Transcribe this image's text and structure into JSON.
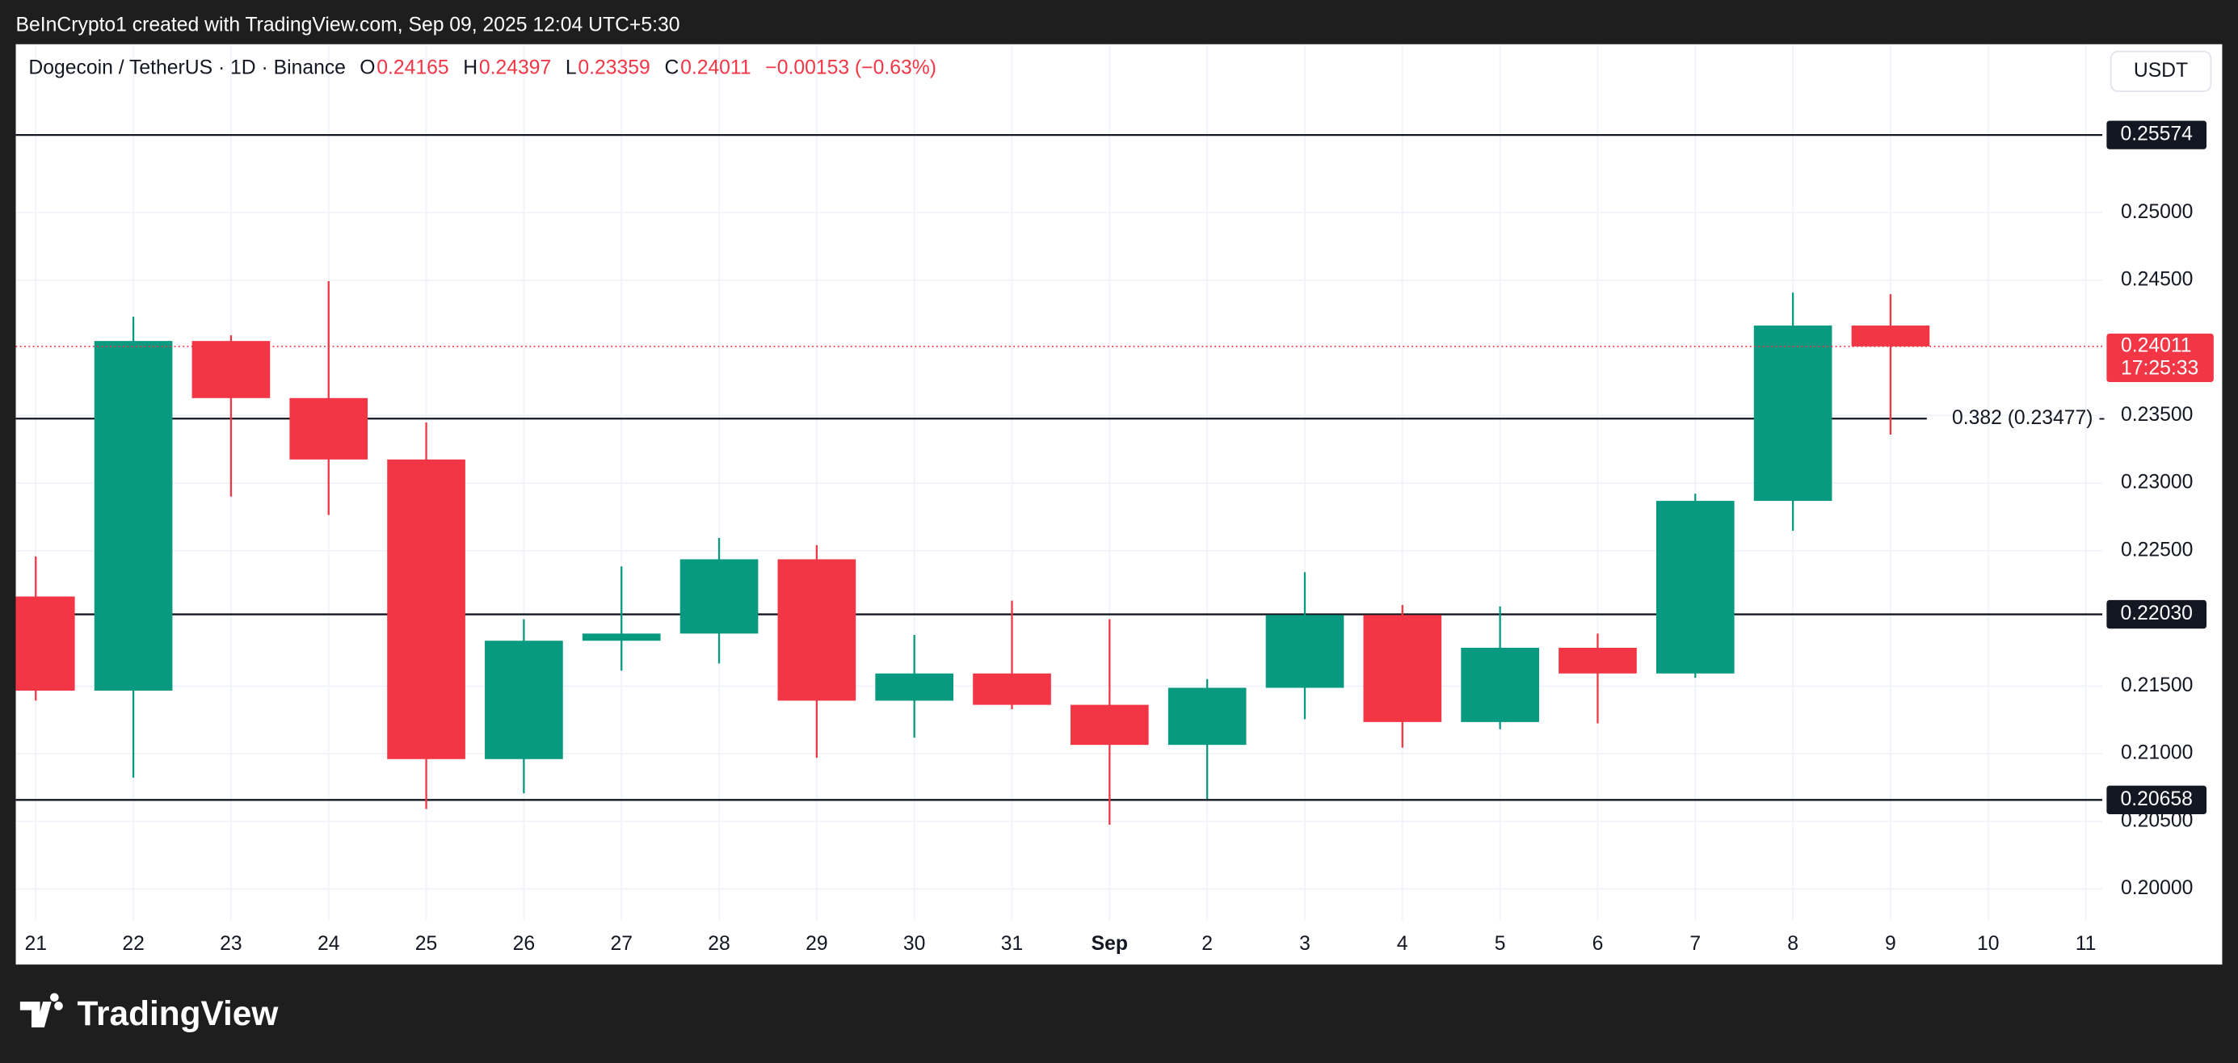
{
  "header": "BeInCrypto1 created with TradingView.com, Sep 09, 2025 12:04 UTC+5:30",
  "footer": "TradingView",
  "chart_data": {
    "type": "candlestick",
    "symbol": "Dogecoin / TetherUS · 1D · Binance",
    "currency": "USDT",
    "legend": [
      {
        "name": "O",
        "value": 0.24165
      },
      {
        "name": "H",
        "value": 0.24397
      },
      {
        "name": "L",
        "value": 0.23359
      },
      {
        "name": "C",
        "value": 0.24011
      }
    ],
    "change_label": "−0.00153 (−0.63%)",
    "categories": [
      "21",
      "22",
      "23",
      "24",
      "25",
      "26",
      "27",
      "28",
      "29",
      "30",
      "31",
      "Sep",
      "2",
      "3",
      "4",
      "5",
      "6",
      "7",
      "8",
      "9",
      "10",
      "11"
    ],
    "open": [
      0.22162,
      0.21466,
      0.24051,
      0.23629,
      0.23175,
      0.2096,
      0.21835,
      0.21888,
      0.22437,
      0.21392,
      0.21593,
      0.21361,
      0.21065,
      0.21487,
      0.22025,
      0.21234,
      0.21783,
      0.21593,
      0.22869,
      0.24165,
      null,
      null
    ],
    "high": [
      0.22458,
      0.2423,
      0.24093,
      0.24494,
      0.23449,
      0.21994,
      0.22384,
      0.22595,
      0.22542,
      0.21878,
      0.22131,
      0.21994,
      0.21551,
      0.22342,
      0.22099,
      0.22089,
      0.21888,
      0.22922,
      0.24409,
      0.24397,
      null,
      null
    ],
    "low": [
      0.21392,
      0.20823,
      0.22901,
      0.22764,
      0.20591,
      0.20707,
      0.21614,
      0.21667,
      0.2097,
      0.21118,
      0.21329,
      0.20475,
      0.20665,
      0.21255,
      0.21044,
      0.21181,
      0.21224,
      0.21561,
      0.22648,
      0.23359,
      null,
      null
    ],
    "close": [
      0.21466,
      0.24051,
      0.23629,
      0.23175,
      0.2096,
      0.21835,
      0.21888,
      0.22437,
      0.21392,
      0.21593,
      0.21361,
      0.21065,
      0.21487,
      0.22025,
      0.21234,
      0.21783,
      0.21593,
      0.22869,
      0.24165,
      0.24011,
      null,
      null
    ],
    "up_color": "#089981",
    "down_color": "#f23645",
    "ylim": [
      0.19768,
      0.26245
    ],
    "yticks": [
      {
        "value": 0.2,
        "label": "0.20000"
      },
      {
        "value": 0.205,
        "label": "0.20500"
      },
      {
        "value": 0.21,
        "label": "0.21000"
      },
      {
        "value": 0.215,
        "label": "0.21500"
      },
      {
        "value": 0.225,
        "label": "0.22500"
      },
      {
        "value": 0.23,
        "label": "0.23000"
      },
      {
        "value": 0.235,
        "label": "0.23500"
      },
      {
        "value": 0.245,
        "label": "0.24500"
      },
      {
        "value": 0.25,
        "label": "0.25000"
      }
    ],
    "grid": true,
    "levels": [
      {
        "value": 0.25574,
        "label": "0.25574"
      },
      {
        "value": 0.2203,
        "label": "0.22030"
      },
      {
        "value": 0.20658,
        "label": "0.20658"
      }
    ],
    "fib_level": {
      "value": 0.23477,
      "label": "0.382 (0.23477) -"
    },
    "last_price": {
      "value": 0.24011,
      "label": "0.24011",
      "countdown": "17:25:33"
    }
  }
}
